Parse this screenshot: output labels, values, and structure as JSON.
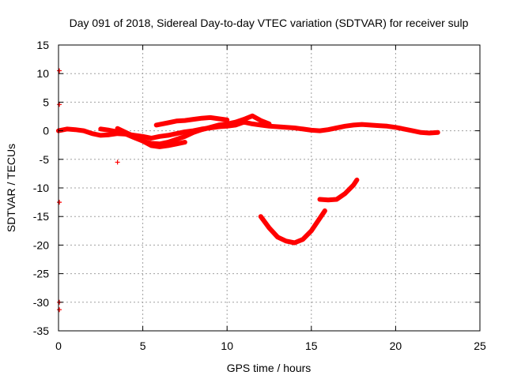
{
  "chart_data": {
    "type": "scatter",
    "title": "Day 091 of 2018, Sidereal Day-to-day VTEC variation (SDTVAR) for receiver sulp",
    "xlabel": "GPS time / hours",
    "ylabel": "SDTVAR / TECUs",
    "xlim": [
      0,
      25
    ],
    "ylim": [
      -35,
      15
    ],
    "xticks": [
      0,
      5,
      10,
      15,
      20,
      25
    ],
    "yticks": [
      15,
      10,
      5,
      0,
      -5,
      -10,
      -15,
      -20,
      -25,
      -30,
      -35
    ],
    "grid": true,
    "legend": "none",
    "series": [
      {
        "name": "sdtvar",
        "color": "#ff0000",
        "marker": "plus",
        "tracks": [
          [
            [
              0.0,
              0.0
            ],
            [
              0.5,
              0.3
            ],
            [
              1.0,
              0.2
            ],
            [
              1.5,
              0.0
            ],
            [
              2.0,
              -0.5
            ],
            [
              2.5,
              -0.8
            ],
            [
              3.0,
              -0.7
            ],
            [
              3.5,
              -0.5
            ],
            [
              4.0,
              -0.6
            ],
            [
              4.5,
              -0.8
            ],
            [
              5.0,
              -1.0
            ],
            [
              5.5,
              -1.3
            ],
            [
              6.0,
              -1.0
            ],
            [
              6.5,
              -0.8
            ],
            [
              7.0,
              -0.5
            ],
            [
              7.5,
              -0.2
            ],
            [
              8.0,
              0.0
            ],
            [
              8.5,
              0.3
            ],
            [
              9.0,
              0.5
            ],
            [
              9.5,
              0.7
            ],
            [
              10.0,
              0.8
            ],
            [
              10.5,
              1.0
            ],
            [
              11.0,
              1.5
            ],
            [
              11.5,
              1.2
            ],
            [
              12.0,
              1.0
            ],
            [
              12.5,
              0.8
            ],
            [
              13.0,
              0.7
            ],
            [
              13.5,
              0.6
            ],
            [
              14.0,
              0.5
            ],
            [
              14.5,
              0.3
            ],
            [
              15.0,
              0.1
            ],
            [
              15.5,
              0.0
            ],
            [
              16.0,
              0.2
            ],
            [
              16.5,
              0.5
            ],
            [
              17.0,
              0.8
            ],
            [
              17.5,
              1.0
            ],
            [
              18.0,
              1.1
            ],
            [
              18.5,
              1.0
            ],
            [
              19.0,
              0.9
            ],
            [
              19.5,
              0.8
            ],
            [
              20.0,
              0.6
            ],
            [
              20.5,
              0.3
            ],
            [
              21.0,
              0.0
            ],
            [
              21.5,
              -0.3
            ],
            [
              22.0,
              -0.4
            ],
            [
              22.5,
              -0.3
            ]
          ],
          [
            [
              2.5,
              0.3
            ],
            [
              3.0,
              0.1
            ],
            [
              3.5,
              -0.2
            ],
            [
              4.0,
              -0.6
            ],
            [
              4.5,
              -1.2
            ],
            [
              5.0,
              -1.8
            ],
            [
              5.5,
              -2.2
            ],
            [
              6.0,
              -2.3
            ],
            [
              6.5,
              -2.0
            ],
            [
              7.0,
              -1.5
            ],
            [
              7.5,
              -1.0
            ],
            [
              8.0,
              -0.3
            ],
            [
              8.5,
              0.2
            ],
            [
              9.0,
              0.6
            ],
            [
              9.5,
              1.0
            ],
            [
              10.0,
              1.2
            ],
            [
              10.5,
              1.5
            ],
            [
              11.0,
              2.0
            ],
            [
              11.5,
              2.6
            ],
            [
              12.0,
              1.8
            ],
            [
              12.5,
              1.2
            ]
          ],
          [
            [
              3.5,
              0.4
            ],
            [
              4.0,
              -0.3
            ],
            [
              4.5,
              -1.0
            ],
            [
              5.0,
              -1.8
            ],
            [
              5.5,
              -2.6
            ],
            [
              6.0,
              -2.8
            ],
            [
              6.5,
              -2.6
            ],
            [
              7.0,
              -2.3
            ],
            [
              7.5,
              -2.0
            ]
          ],
          [
            [
              5.8,
              1.0
            ],
            [
              6.5,
              1.4
            ],
            [
              7.0,
              1.7
            ],
            [
              7.5,
              1.8
            ],
            [
              8.0,
              2.0
            ],
            [
              8.5,
              2.2
            ],
            [
              9.0,
              2.3
            ],
            [
              9.5,
              2.1
            ],
            [
              10.0,
              1.9
            ]
          ],
          [
            [
              12.0,
              -15.0
            ],
            [
              12.5,
              -17.0
            ],
            [
              13.0,
              -18.6
            ],
            [
              13.5,
              -19.3
            ],
            [
              14.0,
              -19.6
            ],
            [
              14.5,
              -19.0
            ],
            [
              15.0,
              -17.5
            ],
            [
              15.5,
              -15.3
            ],
            [
              15.8,
              -14.0
            ]
          ],
          [
            [
              15.5,
              -12.0
            ],
            [
              16.0,
              -12.1
            ],
            [
              16.5,
              -12.0
            ],
            [
              17.0,
              -11.0
            ],
            [
              17.5,
              -9.5
            ],
            [
              17.7,
              -8.6
            ]
          ]
        ],
        "isolated_points": [
          [
            0.05,
            10.5
          ],
          [
            0.05,
            4.6
          ],
          [
            0.05,
            -12.5
          ],
          [
            0.05,
            -30.0
          ],
          [
            0.05,
            -31.3
          ],
          [
            3.5,
            -5.5
          ]
        ]
      }
    ]
  }
}
